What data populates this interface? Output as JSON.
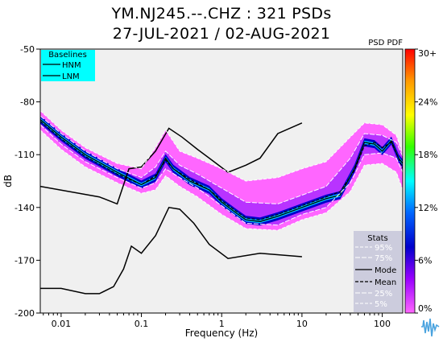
{
  "title_line1": "YM.NJ245.--.CHZ : 321 PSDs",
  "title_line2": "27-JUL-2021 / 02-AUG-2021",
  "chart_data": {
    "type": "heatmap",
    "pdf_label": "PSD PDF",
    "xlabel": "Frequency (Hz)",
    "ylabel": "dB",
    "xscale": "log",
    "xlim": [
      0.0055,
      180
    ],
    "ylim": [
      -200,
      -50
    ],
    "x_ticks": [
      {
        "value": 0.01,
        "label": "0.01"
      },
      {
        "value": 0.1,
        "label": "0.1"
      },
      {
        "value": 1,
        "label": "1"
      },
      {
        "value": 10,
        "label": "10"
      },
      {
        "value": 100,
        "label": "100"
      }
    ],
    "y_ticks": [
      {
        "value": -50,
        "label": "-50"
      },
      {
        "value": -80,
        "label": "-80"
      },
      {
        "value": -110,
        "label": "-110"
      },
      {
        "value": -140,
        "label": "-140"
      },
      {
        "value": -170,
        "label": "-170"
      },
      {
        "value": -200,
        "label": "-200"
      }
    ],
    "colorbar": {
      "ticks": [
        "30+",
        "24%",
        "18%",
        "12%",
        "6%",
        "0%"
      ],
      "colors": [
        "#ff0000",
        "#ff9900",
        "#ffff00",
        "#33ff00",
        "#00ffff",
        "#0066ff",
        "#0000cc",
        "#9900ff",
        "#ff66ff"
      ]
    },
    "background_color": "#f0f0f0",
    "baselines_legend": {
      "title": "Baselines",
      "entries": [
        "HNM",
        "LNM"
      ],
      "background": "#00ffff"
    },
    "stats_legend": {
      "title": "Stats",
      "entries": [
        "95%",
        "75%",
        "Mode",
        "Mean",
        "25%",
        "5%"
      ],
      "background": "#ccccdd"
    },
    "series": [
      {
        "name": "HNM",
        "color": "#000000",
        "x": [
          0.0055,
          0.03,
          0.05,
          0.07,
          0.1,
          0.15,
          0.22,
          0.32,
          0.5,
          0.8,
          1.2,
          2.0,
          3.0,
          5.0,
          10.0
        ],
        "y": [
          -128,
          -134,
          -138,
          -118,
          -117,
          -108,
          -95,
          -100,
          -107,
          -114,
          -120,
          -116,
          -112,
          -98,
          -92
        ]
      },
      {
        "name": "LNM",
        "color": "#000000",
        "x": [
          0.0055,
          0.01,
          0.02,
          0.03,
          0.045,
          0.06,
          0.075,
          0.1,
          0.15,
          0.22,
          0.3,
          0.45,
          0.7,
          1.2,
          3.0,
          10.0
        ],
        "y": [
          -186,
          -186,
          -189,
          -189,
          -185,
          -175,
          -162,
          -166,
          -156,
          -140,
          -141,
          -149,
          -161,
          -169,
          -166,
          -168
        ]
      },
      {
        "name": "Mode",
        "color": "#000000",
        "x": [
          0.0055,
          0.01,
          0.02,
          0.05,
          0.1,
          0.15,
          0.2,
          0.25,
          0.4,
          0.7,
          1.0,
          1.5,
          2.0,
          3.0,
          5.0,
          10.0,
          20.0,
          30.0,
          45.0,
          60.0,
          80.0,
          100.0,
          130.0,
          160.0,
          180.0
        ],
        "y": [
          -90,
          -100,
          -110,
          -120,
          -127,
          -123,
          -112,
          -118,
          -125,
          -130,
          -137,
          -143,
          -147,
          -148,
          -145,
          -140,
          -135,
          -133,
          -118,
          -103,
          -104,
          -108,
          -102,
          -112,
          -115
        ]
      },
      {
        "name": "Mean",
        "color": "#000000",
        "x": [
          0.0055,
          0.01,
          0.02,
          0.05,
          0.1,
          0.15,
          0.2,
          0.25,
          0.4,
          0.7,
          1.0,
          1.5,
          2.0,
          3.0,
          5.0,
          10.0,
          20.0,
          30.0,
          45.0,
          60.0,
          80.0,
          100.0,
          130.0,
          160.0,
          180.0
        ],
        "y": [
          -91,
          -101,
          -111,
          -121,
          -127,
          -122,
          -113,
          -118,
          -124,
          -130,
          -136,
          -142,
          -146,
          -147,
          -144,
          -139,
          -134,
          -131,
          -119,
          -105,
          -103,
          -106,
          -103,
          -112,
          -118
        ]
      },
      {
        "name": "95%",
        "color": "#ffffff",
        "x": [
          0.0055,
          0.01,
          0.02,
          0.05,
          0.1,
          0.15,
          0.2,
          0.3,
          0.5,
          1.0,
          2.0,
          5.0,
          10.0,
          20.0,
          40.0,
          60.0,
          100.0,
          150.0,
          180.0
        ],
        "y": [
          -85,
          -96,
          -106,
          -115,
          -118,
          -106,
          -96,
          -108,
          -112,
          -118,
          -125,
          -123,
          -118,
          -114,
          -100,
          -92,
          -93,
          -99,
          -110
        ]
      },
      {
        "name": "75%",
        "color": "#ffffff",
        "x": [
          0.0055,
          0.01,
          0.02,
          0.05,
          0.1,
          0.15,
          0.2,
          0.3,
          0.5,
          1.0,
          2.0,
          5.0,
          10.0,
          20.0,
          40.0,
          60.0,
          100.0,
          150.0,
          180.0
        ],
        "y": [
          -88,
          -98,
          -108,
          -118,
          -123,
          -117,
          -108,
          -116,
          -121,
          -129,
          -137,
          -138,
          -133,
          -128,
          -112,
          -98,
          -99,
          -103,
          -111
        ]
      },
      {
        "name": "25%",
        "color": "#ffffff",
        "x": [
          0.0055,
          0.01,
          0.02,
          0.05,
          0.1,
          0.15,
          0.2,
          0.3,
          0.5,
          1.0,
          2.0,
          5.0,
          10.0,
          20.0,
          40.0,
          60.0,
          100.0,
          150.0,
          180.0
        ],
        "y": [
          -93,
          -104,
          -114,
          -123,
          -129,
          -126,
          -118,
          -123,
          -129,
          -139,
          -149,
          -150,
          -144,
          -140,
          -126,
          -110,
          -109,
          -112,
          -120
        ]
      },
      {
        "name": "5%",
        "color": "#ffffff",
        "x": [
          0.0055,
          0.01,
          0.02,
          0.05,
          0.1,
          0.15,
          0.2,
          0.3,
          0.5,
          1.0,
          2.0,
          5.0,
          10.0,
          20.0,
          40.0,
          60.0,
          100.0,
          150.0,
          180.0
        ],
        "y": [
          -96,
          -107,
          -117,
          -126,
          -132,
          -130,
          -122,
          -128,
          -134,
          -144,
          -152,
          -153,
          -147,
          -143,
          -131,
          -116,
          -115,
          -120,
          -130
        ]
      }
    ]
  }
}
